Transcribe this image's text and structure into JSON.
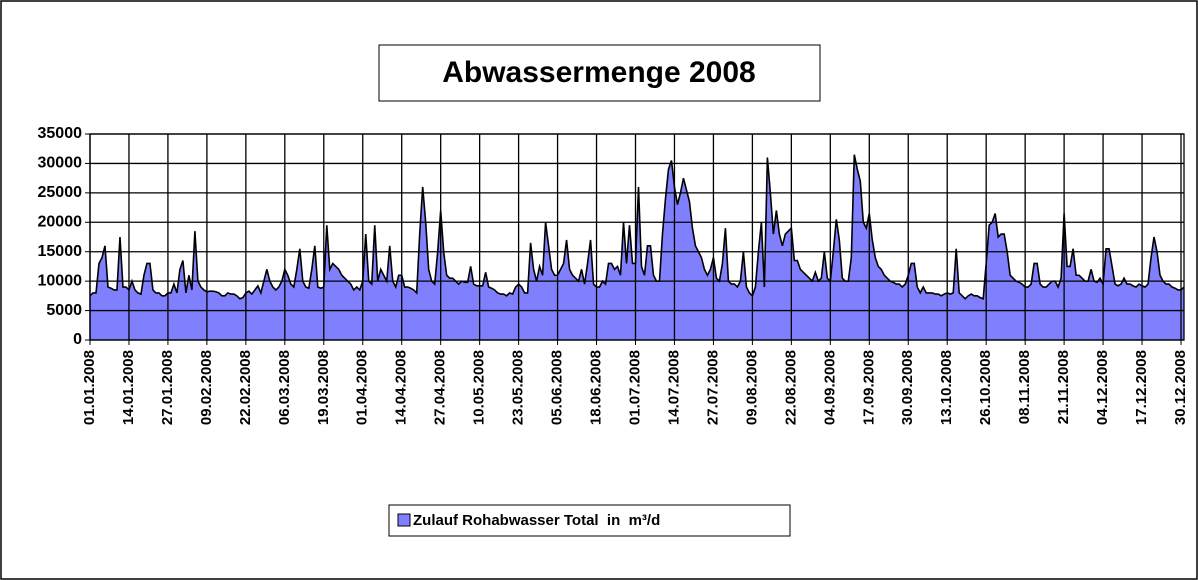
{
  "chart_data": {
    "type": "area",
    "title": "Abwassermenge 2008",
    "categories": [
      "01.01.2008",
      null,
      null,
      null,
      null,
      null,
      null,
      null,
      null,
      null,
      null,
      null,
      null,
      "14.01.2008",
      null,
      null,
      null,
      null,
      null,
      null,
      null,
      null,
      null,
      null,
      null,
      null,
      "27.01.2008",
      null,
      null,
      null,
      null,
      null,
      null,
      null,
      null,
      null,
      null,
      null,
      null,
      "09.02.2008",
      null,
      null,
      null,
      null,
      null,
      null,
      null,
      null,
      null,
      null,
      null,
      null,
      "22.02.2008",
      null,
      null,
      null,
      null,
      null,
      null,
      null,
      null,
      null,
      null,
      null,
      null,
      "06.03.2008",
      null,
      null,
      null,
      null,
      null,
      null,
      null,
      null,
      null,
      null,
      null,
      null,
      "19.03.2008",
      null,
      null,
      null,
      null,
      null,
      null,
      null,
      null,
      null,
      null,
      null,
      null,
      "01.04.2008",
      null,
      null,
      null,
      null,
      null,
      null,
      null,
      null,
      null,
      null,
      null,
      null,
      "14.04.2008",
      null,
      null,
      null,
      null,
      null,
      null,
      null,
      null,
      null,
      null,
      null,
      null,
      "27.04.2008",
      null,
      null,
      null,
      null,
      null,
      null,
      null,
      null,
      null,
      null,
      null,
      null,
      "10.05.2008",
      null,
      null,
      null,
      null,
      null,
      null,
      null,
      null,
      null,
      null,
      null,
      null,
      "23.05.2008",
      null,
      null,
      null,
      null,
      null,
      null,
      null,
      null,
      null,
      null,
      null,
      null,
      "05.06.2008",
      null,
      null,
      null,
      null,
      null,
      null,
      null,
      null,
      null,
      null,
      null,
      null,
      "18.06.2008",
      null,
      null,
      null,
      null,
      null,
      null,
      null,
      null,
      null,
      null,
      null,
      null,
      "01.07.2008",
      null,
      null,
      null,
      null,
      null,
      null,
      null,
      null,
      null,
      null,
      null,
      null,
      "14.07.2008",
      null,
      null,
      null,
      null,
      null,
      null,
      null,
      null,
      null,
      null,
      null,
      null,
      "27.07.2008",
      null,
      null,
      null,
      null,
      null,
      null,
      null,
      null,
      null,
      null,
      null,
      null,
      "09.08.2008",
      null,
      null,
      null,
      null,
      null,
      null,
      null,
      null,
      null,
      null,
      null,
      null,
      "22.08.2008",
      null,
      null,
      null,
      null,
      null,
      null,
      null,
      null,
      null,
      null,
      null,
      null,
      "04.09.2008",
      null,
      null,
      null,
      null,
      null,
      null,
      null,
      null,
      null,
      null,
      null,
      null,
      "17.09.2008",
      null,
      null,
      null,
      null,
      null,
      null,
      null,
      null,
      null,
      null,
      null,
      null,
      "30.09.2008",
      null,
      null,
      null,
      null,
      null,
      null,
      null,
      null,
      null,
      null,
      null,
      null,
      "13.10.2008",
      null,
      null,
      null,
      null,
      null,
      null,
      null,
      null,
      null,
      null,
      null,
      null,
      "26.10.2008",
      null,
      null,
      null,
      null,
      null,
      null,
      null,
      null,
      null,
      null,
      null,
      null,
      "08.11.2008",
      null,
      null,
      null,
      null,
      null,
      null,
      null,
      null,
      null,
      null,
      null,
      null,
      "21.11.2008",
      null,
      null,
      null,
      null,
      null,
      null,
      null,
      null,
      null,
      null,
      null,
      null,
      "04.12.2008",
      null,
      null,
      null,
      null,
      null,
      null,
      null,
      null,
      null,
      null,
      null,
      null,
      "17.12.2008",
      null,
      null,
      null,
      null,
      null,
      null,
      null,
      null,
      null,
      null,
      null,
      null,
      "30.12.2008",
      null
    ],
    "series": [
      {
        "name": "Zulauf Rohabwasser Total  in  m³/d",
        "color": "#8080ff",
        "values": [
          7500,
          8000,
          8000,
          13000,
          14000,
          16000,
          9000,
          8800,
          8500,
          8500,
          17500,
          9000,
          9000,
          8500,
          10000,
          8500,
          8000,
          7800,
          11000,
          13000,
          13000,
          8500,
          8000,
          8000,
          7500,
          7500,
          8000,
          8000,
          9500,
          8000,
          12000,
          13500,
          8000,
          11000,
          8500,
          18500,
          10000,
          9000,
          8500,
          8200,
          8300,
          8300,
          8200,
          8000,
          7500,
          7500,
          8000,
          7800,
          7800,
          7500,
          7000,
          7200,
          8000,
          8300,
          7800,
          8500,
          9200,
          8000,
          10000,
          12000,
          10000,
          9000,
          8500,
          9000,
          10000,
          12000,
          11000,
          9500,
          9000,
          12000,
          15500,
          10000,
          9000,
          8800,
          12000,
          16000,
          9000,
          8800,
          9000,
          19500,
          12000,
          13000,
          12500,
          12000,
          11000,
          10500,
          10000,
          9500,
          8500,
          9000,
          8500,
          10000,
          18000,
          10000,
          9500,
          19500,
          10000,
          12000,
          11000,
          10000,
          16000,
          10000,
          9000,
          11000,
          11000,
          9000,
          9000,
          8800,
          8500,
          8000,
          18000,
          26000,
          20000,
          12000,
          10000,
          9500,
          15000,
          22000,
          15000,
          11000,
          10500,
          10500,
          10000,
          9500,
          10000,
          9800,
          9800,
          12500,
          9500,
          9200,
          9200,
          9200,
          11500,
          9000,
          8800,
          8500,
          8000,
          7800,
          7800,
          7500,
          8000,
          7800,
          9000,
          9500,
          9000,
          8000,
          8000,
          16500,
          12000,
          10000,
          12500,
          11000,
          20000,
          16000,
          12000,
          11000,
          11000,
          12000,
          13000,
          17000,
          12000,
          11000,
          10500,
          10000,
          12000,
          9500,
          13000,
          17000,
          9500,
          9000,
          9000,
          10000,
          9500,
          13000,
          13000,
          12000,
          12500,
          11000,
          20000,
          13000,
          19500,
          13000,
          13000,
          26000,
          12500,
          11000,
          16000,
          16000,
          11000,
          10000,
          10000,
          18000,
          24000,
          29000,
          30500,
          26000,
          23000,
          25000,
          27500,
          25500,
          23500,
          19000,
          16000,
          15000,
          14000,
          12000,
          11000,
          12000,
          14000,
          10500,
          10000,
          13000,
          19000,
          10000,
          9500,
          9500,
          9000,
          10000,
          15000,
          9000,
          8000,
          7500,
          9000,
          15000,
          20000,
          9000,
          31000,
          25000,
          18000,
          22000,
          18000,
          16000,
          18000,
          18500,
          19000,
          13500,
          13500,
          12000,
          11500,
          11000,
          10500,
          10000,
          11500,
          10000,
          10500,
          15000,
          10500,
          10000,
          15000,
          20500,
          17000,
          10500,
          10000,
          10000,
          14000,
          31500,
          29000,
          27000,
          20000,
          19000,
          21500,
          17000,
          14000,
          12500,
          12000,
          11000,
          10500,
          10000,
          9800,
          9500,
          9500,
          9000,
          9500,
          11000,
          13000,
          13000,
          9000,
          8000,
          9000,
          8000,
          8000,
          8000,
          7800,
          7800,
          7500,
          7800,
          8000,
          7800,
          8000,
          15500,
          8000,
          7500,
          7000,
          7500,
          7800,
          7500,
          7500,
          7200,
          7000,
          13000,
          19500,
          20000,
          21500,
          17500,
          18000,
          18000,
          15000,
          11000,
          10500,
          10000,
          9800,
          9500,
          9000,
          9000,
          9500,
          13000,
          13000,
          9500,
          9000,
          9000,
          9500,
          10000,
          10000,
          9000,
          10500,
          21500,
          12500,
          12500,
          15500,
          11000,
          11000,
          10500,
          10000,
          10000,
          12000,
          10000,
          9800,
          10500,
          9500,
          15500,
          15500,
          12500,
          9500,
          9200,
          9500,
          10500,
          9500,
          9500,
          9200,
          9000,
          9500,
          9200,
          9000,
          9500,
          14000,
          17500,
          15000,
          11000,
          10000,
          9500,
          9500,
          9000,
          8800,
          8500,
          8500,
          9000
        ]
      }
    ],
    "ylim": [
      0,
      35000
    ],
    "yticks": [
      0,
      5000,
      10000,
      15000,
      20000,
      25000,
      30000,
      35000
    ],
    "grid": true,
    "legend": "bottom"
  }
}
